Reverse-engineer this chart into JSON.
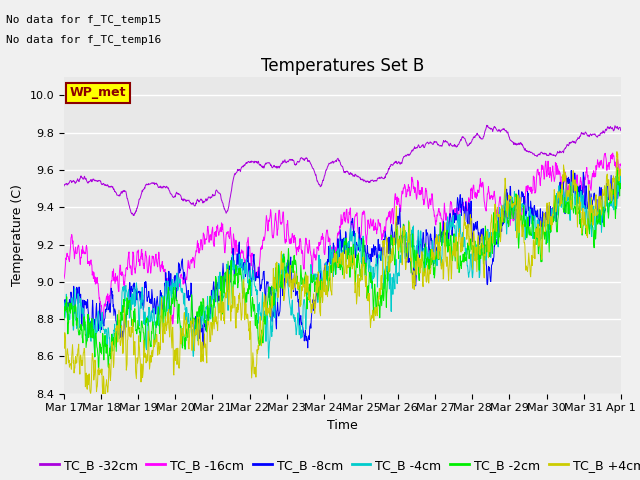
{
  "title": "Temperatures Set B",
  "xlabel": "Time",
  "ylabel": "Temperature (C)",
  "ylim": [
    8.4,
    10.1
  ],
  "yticks": [
    8.4,
    8.6,
    8.8,
    9.0,
    9.2,
    9.4,
    9.6,
    9.8,
    10.0
  ],
  "annotation_lines": [
    "No data for f_TC_temp15",
    "No data for f_TC_temp16"
  ],
  "wp_met_label": "WP_met",
  "series": [
    {
      "label": "TC_B -32cm",
      "color": "#aa00dd"
    },
    {
      "label": "TC_B -16cm",
      "color": "#ff00ff"
    },
    {
      "label": "TC_B -8cm",
      "color": "#0000ff"
    },
    {
      "label": "TC_B -4cm",
      "color": "#00cccc"
    },
    {
      "label": "TC_B -2cm",
      "color": "#00ee00"
    },
    {
      "label": "TC_B +4cm",
      "color": "#cccc00"
    }
  ],
  "x_tick_labels": [
    "Mar 17",
    "Mar 18",
    "Mar 19",
    "Mar 20",
    "Mar 21",
    "Mar 22",
    "Mar 23",
    "Mar 24",
    "Mar 25",
    "Mar 26",
    "Mar 27",
    "Mar 28",
    "Mar 29",
    "Mar 30",
    "Mar 31",
    "Apr 1"
  ],
  "n_points": 1440,
  "background_color": "#f0f0f0",
  "plot_bg_color": "#e8e8e8",
  "grid_color": "#ffffff",
  "title_fontsize": 12,
  "label_fontsize": 9,
  "tick_fontsize": 8,
  "legend_fontsize": 9
}
